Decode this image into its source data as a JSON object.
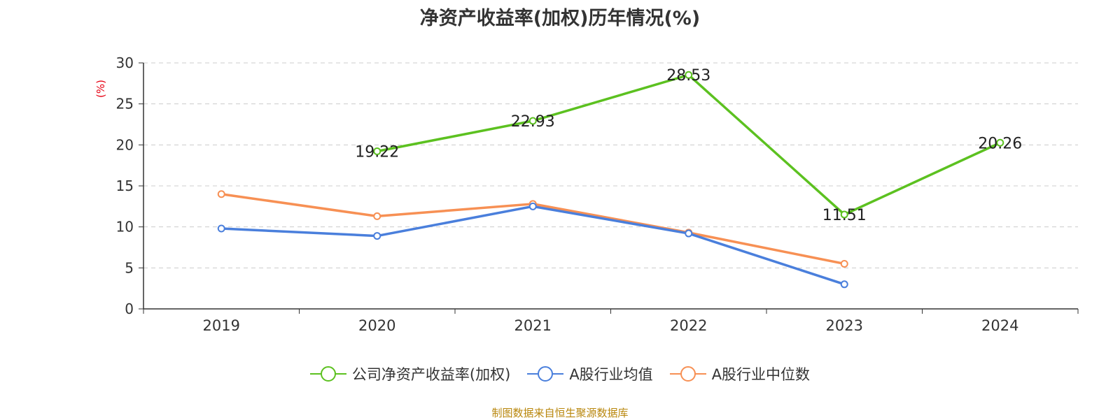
{
  "title": "净资产收益率(加权)历年情况(%)",
  "source_text": "制图数据来自恒生聚源数据库",
  "chart_data": {
    "type": "line",
    "title": "净资产收益率(加权)历年情况(%)",
    "xlabel": "",
    "ylabel": "(%)",
    "categories": [
      "2019",
      "2020",
      "2021",
      "2022",
      "2023",
      "2024"
    ],
    "ylim": [
      0,
      30
    ],
    "yticks": [
      0,
      5,
      10,
      15,
      20,
      25,
      30
    ],
    "grid": "horizontal-dashed",
    "legend_position": "bottom-center",
    "series": [
      {
        "name": "公司净资产收益率(加权)",
        "color": "#5cc120",
        "show_labels": true,
        "values": [
          null,
          19.22,
          22.93,
          28.53,
          11.51,
          20.26
        ],
        "labels": [
          "",
          "19.22",
          "22.93",
          "28.53",
          "11.51",
          "20.26"
        ]
      },
      {
        "name": "A股行业均值",
        "color": "#4a7fdc",
        "show_labels": false,
        "values": [
          9.8,
          8.9,
          12.5,
          9.2,
          3.0,
          null
        ],
        "labels": [
          "",
          "",
          "",
          "",
          "",
          ""
        ]
      },
      {
        "name": "A股行业中位数",
        "color": "#f79054",
        "show_labels": false,
        "values": [
          14.0,
          11.3,
          12.8,
          9.3,
          5.5,
          null
        ],
        "labels": [
          "",
          "",
          "",
          "",
          "",
          ""
        ]
      }
    ]
  }
}
